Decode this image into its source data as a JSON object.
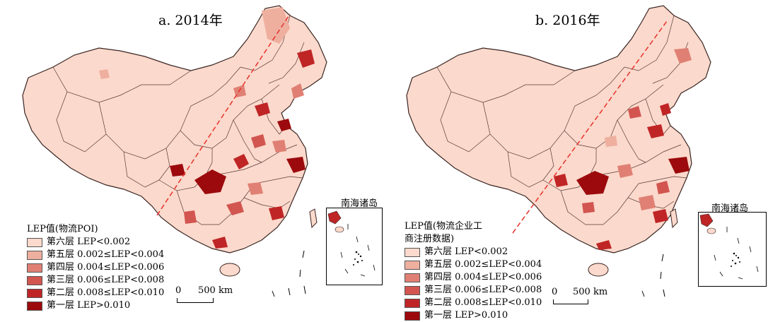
{
  "panels": [
    {
      "title": "a. 2014年",
      "legend_title": "LEP值(物流POI)",
      "scale_zero": "0",
      "scale_label": "500 km",
      "inset_title": "南海诸岛"
    },
    {
      "title": "b. 2016年",
      "legend_title": "LEP值(物流企业工\n商注册数据)",
      "scale_zero": "0",
      "scale_label": "500 km",
      "inset_title": "南海诸岛"
    }
  ],
  "legend": [
    {
      "label": "第六层 LEP<0.002",
      "color": "#fbd9cc"
    },
    {
      "label": "第五层 0.002≤LEP<0.004",
      "color": "#eeaf9f"
    },
    {
      "label": "第四层 0.004≤LEP<0.006",
      "color": "#e08074"
    },
    {
      "label": "第三层 0.006≤LEP<0.008",
      "color": "#d25550"
    },
    {
      "label": "第二层 0.008≤LEP<0.010",
      "color": "#c02526"
    },
    {
      "label": "第一层 LEP>0.010",
      "color": "#9c0a0d"
    }
  ],
  "colors": {
    "base": "#fbd9cc",
    "boundary": "#5a3a36",
    "hu_line": "#e8322c"
  }
}
